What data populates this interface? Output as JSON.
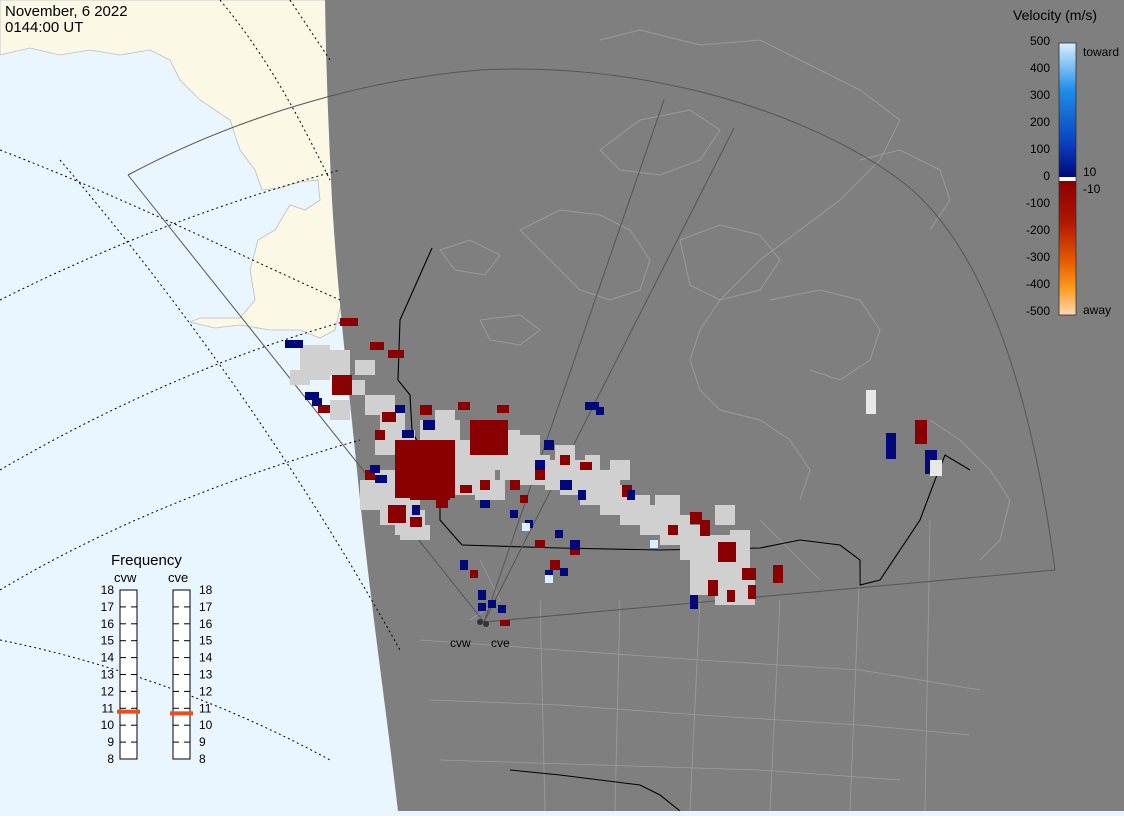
{
  "header": {
    "date": "November, 6 2022",
    "time": "0144:00 UT"
  },
  "legend": {
    "title": "Velocity (m/s)",
    "ticks": [
      "500",
      "400",
      "300",
      "200",
      "100",
      "0",
      "-100",
      "-200",
      "-300",
      "-400",
      "-500"
    ],
    "toward_label": "toward",
    "away_label": "away",
    "pos_threshold": "10",
    "neg_threshold": "-10",
    "colors": {
      "toward_high": "#d8f0ff",
      "toward_mid": "#1f8fe8",
      "toward_low": "#00087a",
      "away_low": "#8a0000",
      "away_mid": "#e65c00",
      "away_high": "#ffd9b0",
      "ground_scatter": "#d0d0d0"
    }
  },
  "frequency_panel": {
    "title": "Frequency",
    "radars": [
      {
        "name": "cvw",
        "value_mhz": 10.8
      },
      {
        "name": "cve",
        "value_mhz": 10.7
      }
    ],
    "scale": [
      "18",
      "17",
      "16",
      "15",
      "14",
      "13",
      "12",
      "11",
      "10",
      "9",
      "8"
    ],
    "indicator_color": "#e8501a"
  },
  "radars": [
    {
      "name": "cvw"
    },
    {
      "name": "cve"
    }
  ],
  "map": {
    "night_color": "#7f7f7f",
    "day_ocean": "#eaf6ff",
    "day_land": "#fbf8e6"
  }
}
